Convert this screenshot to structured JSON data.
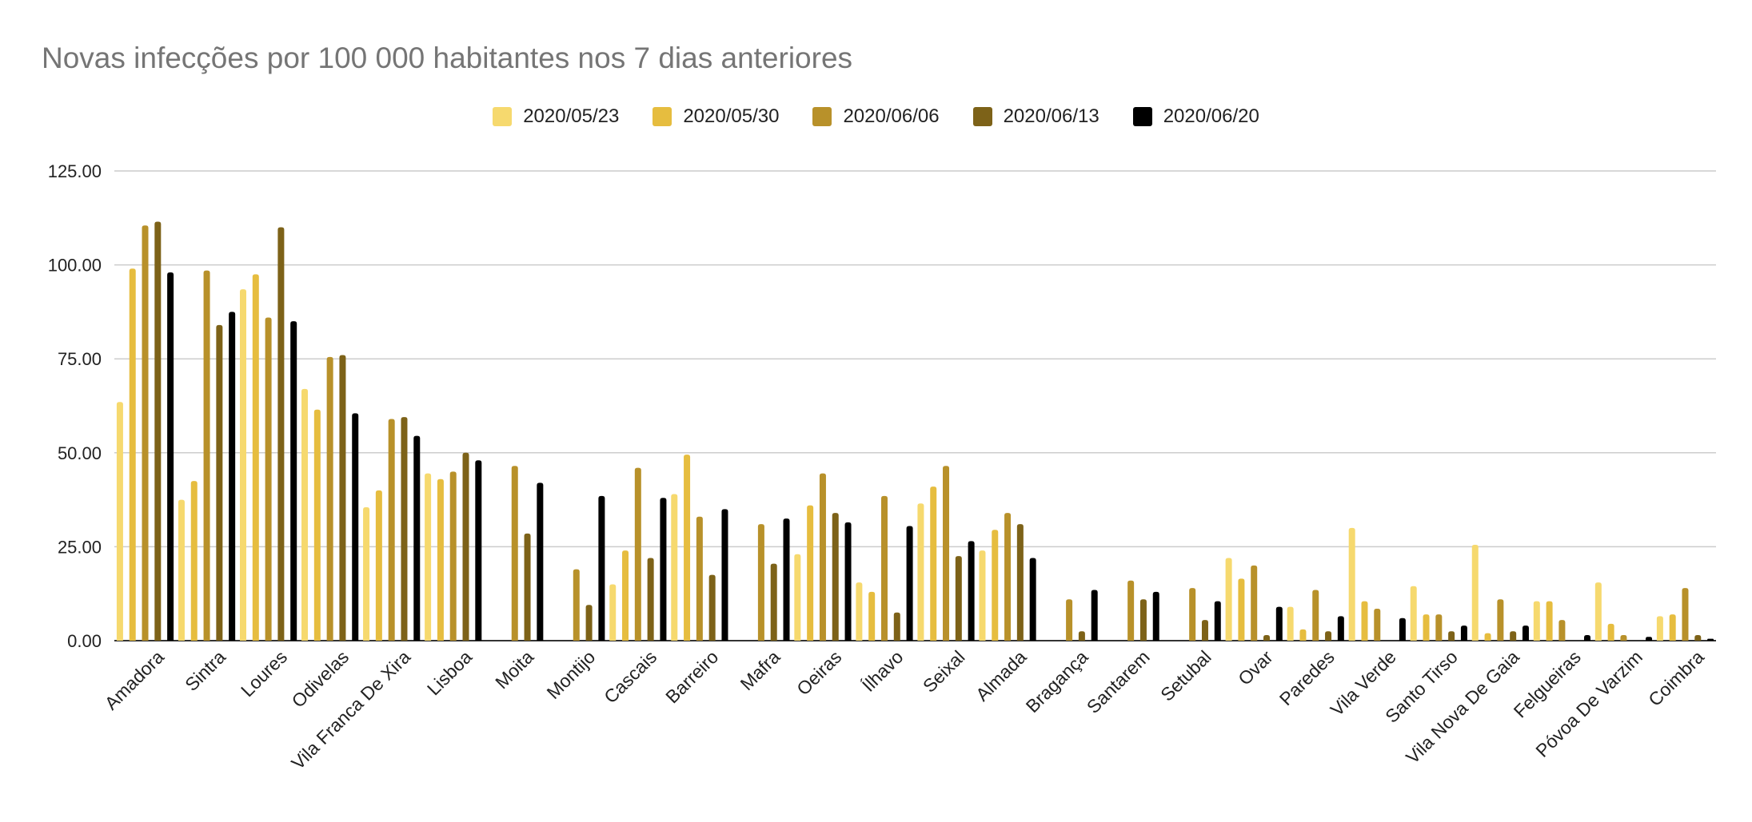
{
  "chart_data": {
    "type": "bar",
    "title": "Novas infecções por 100 000 habitantes nos 7 dias anteriores",
    "xlabel": "",
    "ylabel": "",
    "ylim": [
      0,
      125
    ],
    "yticks": [
      "0.00",
      "25.00",
      "50.00",
      "75.00",
      "100.00",
      "125.00"
    ],
    "grid": true,
    "legend_position": "top-center",
    "categories": [
      "Amadora",
      "Sintra",
      "Loures",
      "Odivelas",
      "Vila Franca De Xira",
      "Lisboa",
      "Moita",
      "Montijo",
      "Cascais",
      "Barreiro",
      "Mafra",
      "Oeiras",
      "Ílhavo",
      "Seixal",
      "Almada",
      "Bragança",
      "Santarem",
      "Setubal",
      "Ovar",
      "Paredes",
      "Vila Verde",
      "Santo Tirso",
      "Vila Nova De Gaia",
      "Felgueiras",
      "Póvoa De Varzim",
      "Coimbra"
    ],
    "series": [
      {
        "name": "2020/05/23",
        "color": "#f6d96e",
        "values": [
          63.5,
          37.5,
          93.5,
          67,
          35.5,
          44.5,
          0,
          0,
          15,
          39,
          0,
          23,
          15.5,
          36.5,
          24,
          0,
          0,
          0,
          22,
          9,
          30,
          14.5,
          25.5,
          10.5,
          15.5,
          6.5
        ]
      },
      {
        "name": "2020/05/30",
        "color": "#e6bd3f",
        "values": [
          99,
          42.5,
          97.5,
          61.5,
          40,
          43,
          0,
          0,
          24,
          49.5,
          0,
          36,
          13,
          41,
          29.5,
          0,
          0,
          0,
          16.5,
          3,
          10.5,
          7,
          2,
          10.5,
          4.5,
          7
        ]
      },
      {
        "name": "2020/06/06",
        "color": "#b8912a",
        "values": [
          110.5,
          98.5,
          86,
          75.5,
          59,
          45,
          46.5,
          19,
          46,
          33,
          31,
          44.5,
          38.5,
          46.5,
          34,
          11,
          16,
          14,
          20,
          13.5,
          8.5,
          7,
          11,
          5.5,
          1.5,
          14
        ]
      },
      {
        "name": "2020/06/13",
        "color": "#7d6218",
        "values": [
          111.5,
          84,
          110,
          76,
          59.5,
          50,
          28.5,
          9.5,
          22,
          17.5,
          20.5,
          34,
          7.5,
          22.5,
          31,
          2.5,
          11,
          5.5,
          1.5,
          2.5,
          0,
          2.5,
          2.5,
          0,
          0,
          1.5
        ]
      },
      {
        "name": "2020/06/20",
        "color": "#000000",
        "values": [
          98,
          87.5,
          85,
          60.5,
          54.5,
          48,
          42,
          38.5,
          38,
          35,
          32.5,
          31.5,
          30.5,
          26.5,
          22,
          13.5,
          13,
          10.5,
          9,
          6.5,
          6,
          4,
          4,
          1.5,
          1,
          0.5
        ]
      }
    ]
  }
}
